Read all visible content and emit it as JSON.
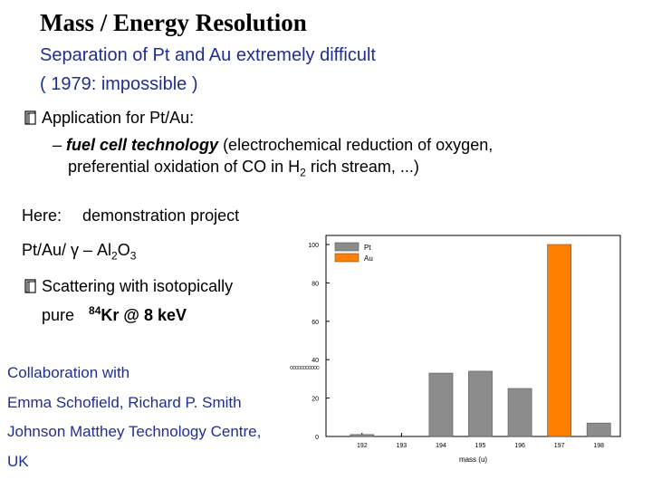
{
  "title": "Mass / Energy  Resolution",
  "subtitle_line1": "Separation of Pt and Au extremely difficult",
  "subtitle_line2": "( 1979:  impossible )",
  "bullet1": {
    "icon": "book-icon",
    "text": "Application for Pt/Au:"
  },
  "sub_bullet": {
    "dash": "–",
    "italic": "fuel cell technology",
    "rest_line1": " (electrochemical reduction of oxygen,",
    "line2_a": "preferential oxidation of CO in H",
    "line2_sub": "2",
    "line2_b": " rich stream, ...)"
  },
  "here": {
    "label": "Here:",
    "text": "demonstration project"
  },
  "sample": {
    "a": "Pt/Au/ γ – Al",
    "sub2": "2",
    "b": "O",
    "sub3": "3"
  },
  "bullet2": {
    "icon": "book-icon",
    "line1": "Scattering with isotopically",
    "line2_a": "pure",
    "sup": "84",
    "line2_b": "Kr @ 8 ke",
    "line2_c": "V"
  },
  "collab": [
    "Collaboration with",
    "Emma Schofield, Richard P. Smith",
    "Johnson Matthey Technology Centre,",
    "UK"
  ],
  "colors": {
    "accent_blue": "#1f2f8f",
    "pt_gray": "#8c8c8c",
    "au_orange": "#ff7f00"
  },
  "chart_data": {
    "type": "bar",
    "categories": [
      "192",
      "193",
      "194",
      "195",
      "196",
      "197",
      "198"
    ],
    "series": [
      {
        "name": "Pt",
        "color": "#8c8c8c",
        "values": [
          1,
          0,
          33,
          34,
          25,
          0,
          7
        ]
      },
      {
        "name": "Au",
        "color": "#ff7f00",
        "values": [
          0,
          0,
          0,
          0,
          0,
          100,
          0
        ]
      }
    ],
    "yticks": [
      "0",
      "20",
      "40",
      "60",
      "80",
      "100"
    ],
    "ylim": [
      0,
      100
    ],
    "xlabel": "mass (u)",
    "ylabel": "",
    "legend_position": "top-left",
    "inset_label": "ooooooooooo"
  }
}
